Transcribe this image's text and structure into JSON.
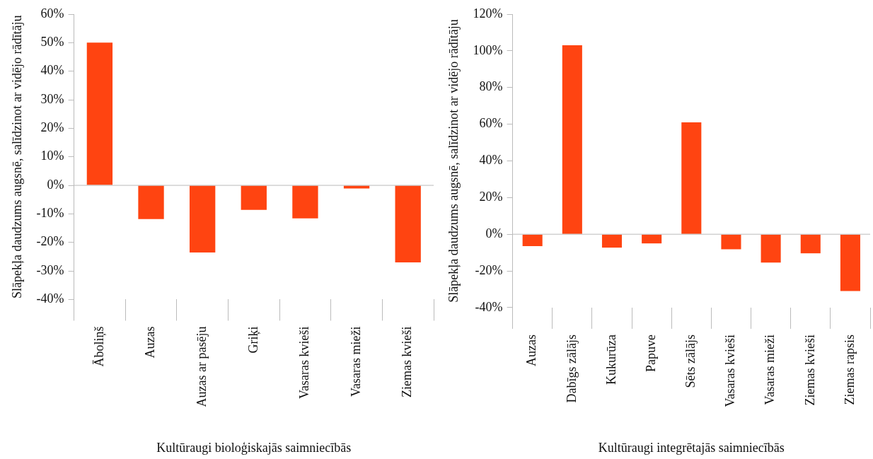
{
  "chart_data": [
    {
      "type": "bar",
      "xlabel": "Kultūraugi bioloģiskajās saimniecībās",
      "ylabel": "Slāpekļa daudzums augsnē, salīdzinot ar vidējo rādītāju",
      "categories": [
        "Āboliņš",
        "Auzas",
        "Auzas ar pasēju",
        "Griķi",
        "Vasaras kvieši",
        "Vasaras mieži",
        "Ziemas kvieši"
      ],
      "series": [
        {
          "color": "#ff4411",
          "values": [
            50,
            -11.8,
            -23.5,
            -8.6,
            -11.6,
            -1.1,
            -27
          ]
        }
      ],
      "ylim": [
        -40,
        60
      ],
      "yticks": [
        {
          "value": -40,
          "label": "-40%"
        },
        {
          "value": -30,
          "label": "-30%"
        },
        {
          "value": -20,
          "label": "-20%"
        },
        {
          "value": -10,
          "label": "-10%"
        },
        {
          "value": 0,
          "label": "0%"
        },
        {
          "value": 10,
          "label": "10%"
        },
        {
          "value": 20,
          "label": "20%"
        },
        {
          "value": 30,
          "label": "30%"
        },
        {
          "value": 40,
          "label": "40%"
        },
        {
          "value": 50,
          "label": "50%"
        },
        {
          "value": 60,
          "label": "60%"
        }
      ],
      "ref_lines": [
        {
          "axis": "y",
          "value": 0,
          "color": "#bbbbbb"
        }
      ],
      "grid": false,
      "legend": false
    },
    {
      "type": "bar",
      "xlabel": "Kultūraugi integrētajās saimniecībās",
      "ylabel": "Slāpekļa daudzums augsnē, salīdzinot ar vidējo rādītāju",
      "categories": [
        "Auzas",
        "Dabīgs zālājs",
        "Kukurūza",
        "Papuve",
        "Sēts zālājs",
        "Vasaras kvieši",
        "Vasaras mieži",
        "Ziemas kvieši",
        "Ziemas rapsis"
      ],
      "series": [
        {
          "color": "#ff4411",
          "values": [
            -6.5,
            103,
            -7.3,
            -5,
            61,
            -8.2,
            -15.4,
            -10.4,
            -31
          ]
        }
      ],
      "ylim": [
        -40,
        120
      ],
      "yticks": [
        {
          "value": -40,
          "label": "-40%"
        },
        {
          "value": -20,
          "label": "-20%"
        },
        {
          "value": 0,
          "label": "0%"
        },
        {
          "value": 20,
          "label": "20%"
        },
        {
          "value": 40,
          "label": "40%"
        },
        {
          "value": 60,
          "label": "60%"
        },
        {
          "value": 80,
          "label": "80%"
        },
        {
          "value": 100,
          "label": "100%"
        },
        {
          "value": 120,
          "label": "120%"
        }
      ],
      "ref_lines": [
        {
          "axis": "y",
          "value": 0,
          "color": "#bbbbbb"
        }
      ],
      "grid": false,
      "legend": false
    }
  ]
}
